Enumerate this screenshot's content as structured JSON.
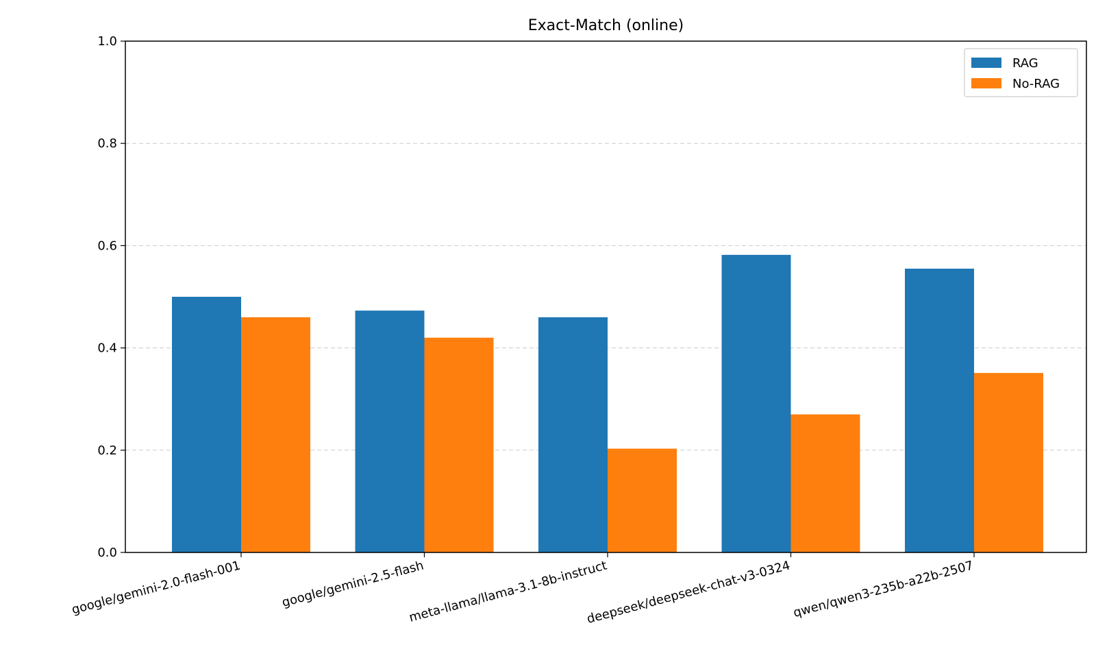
{
  "chart_data": {
    "type": "bar",
    "title": "Exact-Match (online)",
    "xlabel": "",
    "ylabel": "",
    "ylim": [
      0,
      1.0
    ],
    "yticks": [
      "0.0",
      "0.2",
      "0.4",
      "0.6",
      "0.8",
      "1.0"
    ],
    "ytick_values": [
      0,
      0.2,
      0.4,
      0.6,
      0.8,
      1.0
    ],
    "grid": "y-dashed",
    "legend_position": "top-right",
    "categories": [
      "google/gemini-2.0-flash-001",
      "google/gemini-2.5-flash",
      "meta-llama/llama-3.1-8b-instruct",
      "deepseek/deepseek-chat-v3-0324",
      "qwen/qwen3-235b-a22b-2507"
    ],
    "series": [
      {
        "name": "RAG",
        "color": "#1f77b4",
        "values": [
          0.5,
          0.473,
          0.46,
          0.582,
          0.555
        ]
      },
      {
        "name": "No-RAG",
        "color": "#ff7f0e",
        "values": [
          0.46,
          0.42,
          0.203,
          0.27,
          0.351
        ]
      }
    ]
  }
}
